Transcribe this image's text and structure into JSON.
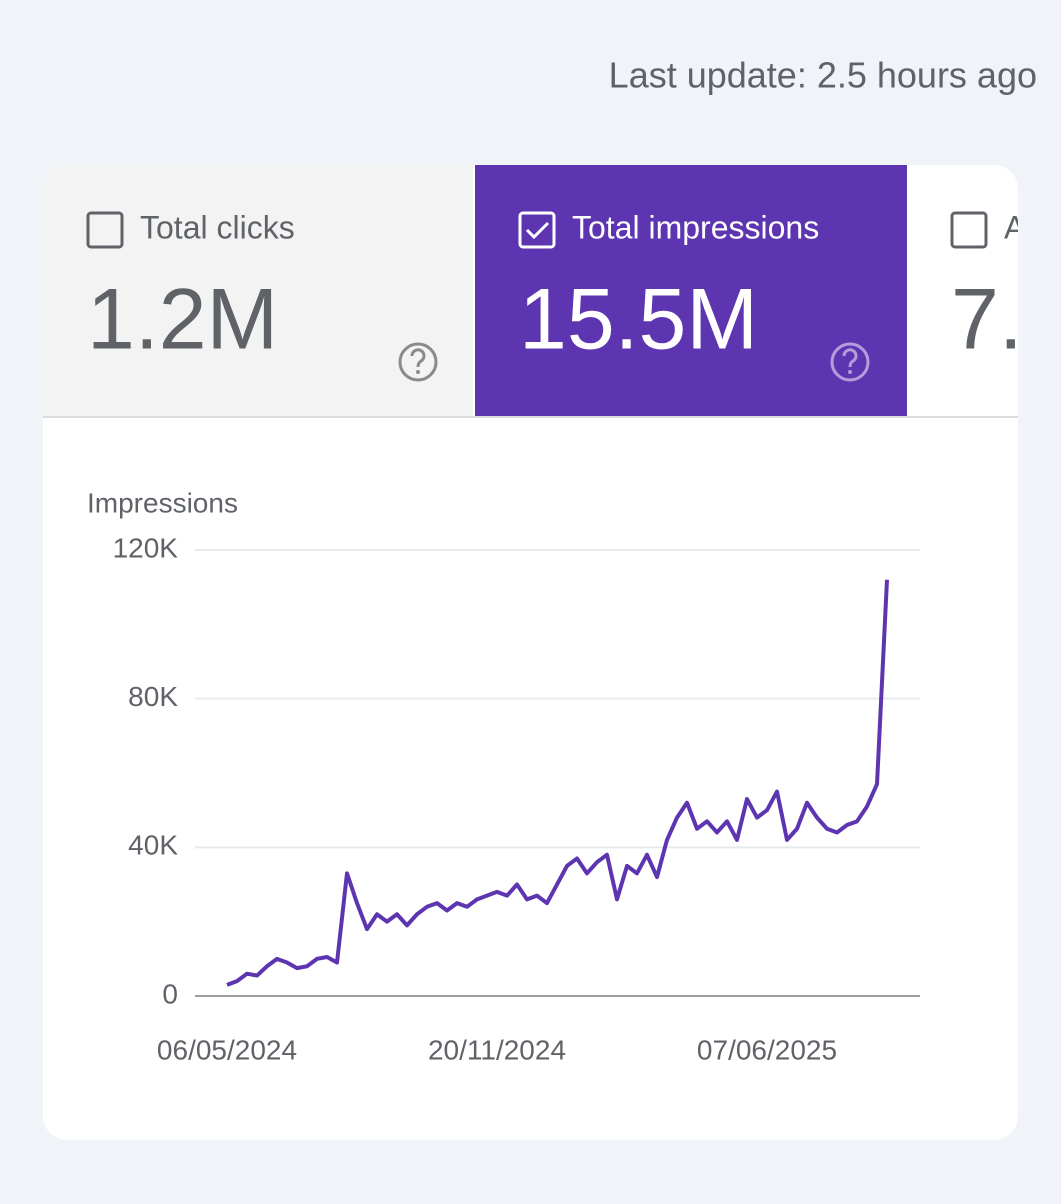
{
  "header": {
    "last_update": "Last update: 2.5 hours ago"
  },
  "tabs": [
    {
      "label": "Total clicks",
      "value": "1.2M",
      "selected": false
    },
    {
      "label": "Total impressions",
      "value": "15.5M",
      "selected": true
    },
    {
      "label": "A",
      "value": "7.",
      "selected": false
    }
  ],
  "chart_data": {
    "type": "line",
    "y_label": "Impressions",
    "categories": [
      "06/05/2024",
      null,
      null,
      null,
      null,
      null,
      null,
      null,
      null,
      null,
      null,
      null,
      null,
      null,
      null,
      null,
      null,
      null,
      null,
      null,
      null,
      null,
      null,
      null,
      null,
      null,
      null,
      "20/11/2024",
      null,
      null,
      null,
      null,
      null,
      null,
      null,
      null,
      null,
      null,
      null,
      null,
      null,
      null,
      null,
      null,
      null,
      null,
      null,
      null,
      null,
      null,
      null,
      null,
      null,
      null,
      "07/06/2025",
      null,
      null,
      null,
      null,
      null,
      null,
      null,
      null,
      null,
      null,
      null,
      null
    ],
    "series": [
      {
        "name": "Impressions",
        "color": "#5e35b1",
        "values": [
          3000,
          4000,
          6000,
          5500,
          8000,
          10000,
          9000,
          7500,
          8000,
          10000,
          10500,
          9000,
          33000,
          25000,
          18000,
          22000,
          20000,
          22000,
          19000,
          22000,
          24000,
          25000,
          23000,
          25000,
          24000,
          26000,
          27000,
          28000,
          27000,
          30000,
          26000,
          27000,
          25000,
          30000,
          35000,
          37000,
          33000,
          36000,
          38000,
          26000,
          35000,
          33000,
          38000,
          32000,
          42000,
          48000,
          52000,
          45000,
          47000,
          44000,
          47000,
          42000,
          53000,
          48000,
          50000,
          55000,
          42000,
          45000,
          52000,
          48000,
          45000,
          44000,
          46000,
          47000,
          51000,
          57000,
          112000
        ]
      }
    ],
    "ylim": [
      0,
      120000
    ],
    "yticks": [
      0,
      {
        "value": 40000,
        "label": "40K"
      },
      {
        "value": 80000,
        "label": "80K"
      },
      {
        "value": 120000,
        "label": "120K"
      }
    ],
    "grid": true
  }
}
